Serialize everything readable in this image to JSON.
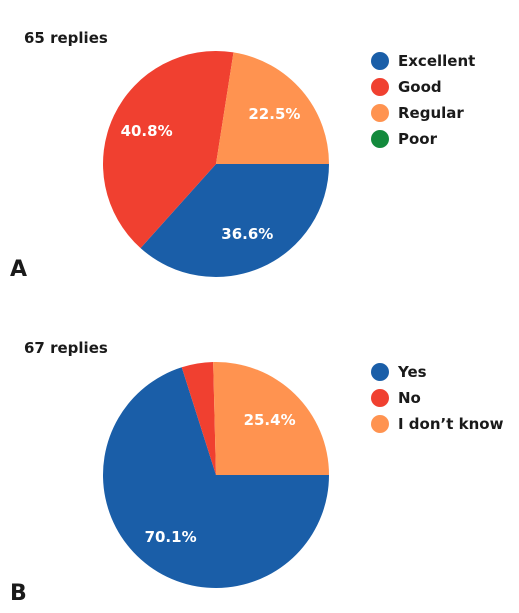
{
  "chart_data": [
    {
      "type": "pie",
      "panel": "A",
      "responses": "65 replies",
      "series": [
        {
          "name": "Excellent",
          "value": 36.6,
          "color": "#1a5ea8",
          "label": "36.6%"
        },
        {
          "name": "Good",
          "value": 40.8,
          "color": "#f04030",
          "label": "40.8%"
        },
        {
          "name": "Regular",
          "value": 22.5,
          "color": "#ff9350",
          "label": "22.5%"
        },
        {
          "name": "Poor",
          "value": 0,
          "color": "#138a3c",
          "label": ""
        }
      ],
      "legend_position": "right"
    },
    {
      "type": "pie",
      "panel": "B",
      "responses": "67 replies",
      "series": [
        {
          "name": "Yes",
          "value": 70.1,
          "color": "#1a5ea8",
          "label": "70.1%"
        },
        {
          "name": "No",
          "value": 4.5,
          "color": "#f04030",
          "label": ""
        },
        {
          "name": "I don’t know",
          "value": 25.4,
          "color": "#ff9350",
          "label": "25.4%"
        }
      ],
      "legend_position": "right"
    }
  ]
}
